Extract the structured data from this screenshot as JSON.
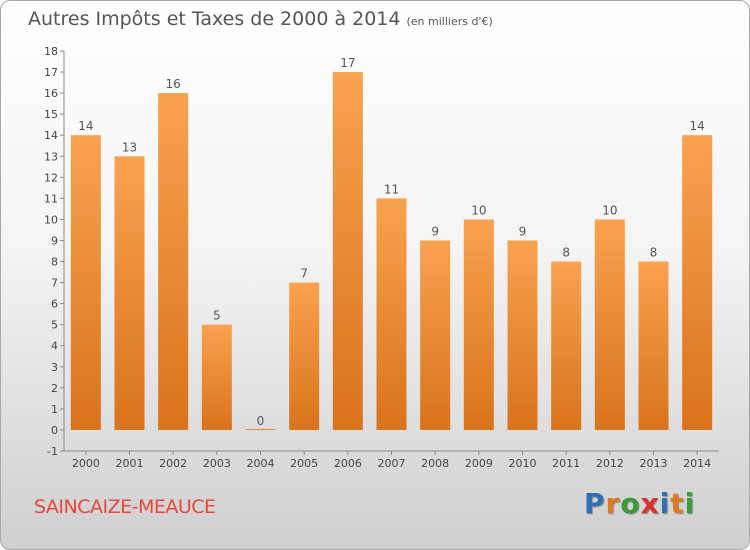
{
  "header": {
    "title": "Autres Impôts et Taxes de 2000 à 2014",
    "unit": "(en milliers d'€)"
  },
  "footer": {
    "commune": "SAINCAIZE-MEAUCE",
    "brand_letters": [
      "P",
      "r",
      "o",
      "x",
      "i",
      "t",
      "i"
    ],
    "brand_colors": [
      "#2f6fb5",
      "#e07a1f",
      "#3a9b3a",
      "#d9312e",
      "#2f6fb5",
      "#e07a1f",
      "#3a9b3a"
    ]
  },
  "chart_data": {
    "type": "bar",
    "categories": [
      "2000",
      "2001",
      "2002",
      "2003",
      "2004",
      "2005",
      "2006",
      "2007",
      "2008",
      "2009",
      "2010",
      "2011",
      "2012",
      "2013",
      "2014"
    ],
    "values": [
      14,
      13,
      16,
      5,
      0,
      7,
      17,
      11,
      9,
      10,
      9,
      8,
      10,
      8,
      14
    ],
    "data_labels": [
      "14",
      "13",
      "16",
      "5",
      "0",
      "7",
      "17",
      "11",
      "9",
      "10",
      "9",
      "8",
      "10",
      "8",
      "14"
    ],
    "yticks": [
      -1,
      0,
      1,
      2,
      3,
      4,
      5,
      6,
      7,
      8,
      9,
      10,
      11,
      12,
      13,
      14,
      15,
      16,
      17,
      18
    ],
    "ylim": [
      -1,
      18
    ],
    "grid": false,
    "bar_color_top": "#f9a24f",
    "bar_color_bottom": "#d9731c"
  }
}
